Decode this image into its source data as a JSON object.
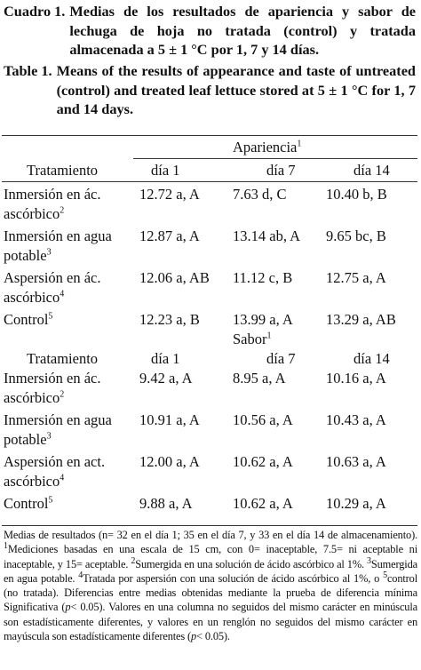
{
  "caption_es": {
    "label": "Cuadro 1.",
    "text": "Medias de los resultados de apariencia y sabor de lechuga de hoja no tratada (control) y tratada almacenada a 5 ± 1 °C por 1, 7 y 14 días."
  },
  "caption_en": {
    "label": "Table 1.",
    "text": "Means of the results of appearance and taste of untreated (control) and treated leaf lettuce stored at 5 ± 1 °C for 1, 7 and 14 days."
  },
  "sections": [
    {
      "title": {
        "text": "Apariencia",
        "sup": "1"
      },
      "header": [
        "Tratamiento",
        "día 1",
        "día 7",
        "día 14"
      ],
      "rows": [
        {
          "treatment": [
            "Inmersión en ác.",
            "ascórbico"
          ],
          "sup": "2",
          "values": [
            "12.72 a, A",
            "7.63 d, C",
            "10.40 b, B"
          ]
        },
        {
          "treatment": [
            "Inmersión en agua",
            "potable"
          ],
          "sup": "3",
          "values": [
            "12.87 a, A",
            "13.14 ab,  A",
            "9.65 bc, B"
          ]
        },
        {
          "treatment": [
            "Aspersión en ác.",
            "ascórbico"
          ],
          "sup": "4",
          "values": [
            "12.06 a, AB",
            "11.12 c, B",
            "12.75 a, A"
          ]
        },
        {
          "treatment": [
            "Control"
          ],
          "sup": "5",
          "values": [
            "12.23 a, B",
            "13.99 a, A",
            "13.29 a, AB"
          ]
        }
      ]
    },
    {
      "title": {
        "text": "Sabor",
        "sup": "1"
      },
      "header": [
        "Tratamiento",
        "día 1",
        "día 7",
        "día 14"
      ],
      "rows": [
        {
          "treatment": [
            "Inmersión en ác.",
            "ascórbico"
          ],
          "sup": "2",
          "values": [
            "9.42 a, A",
            "8.95 a, A",
            "10.16 a, A"
          ]
        },
        {
          "treatment": [
            "Inmersión en agua",
            "potable"
          ],
          "sup": "3",
          "values": [
            "10.91 a, A",
            "10.56 a, A",
            "10.43 a, A"
          ]
        },
        {
          "treatment": [
            "Aspersión en act.",
            "ascórbico"
          ],
          "sup": "4",
          "values": [
            "12.00 a, A",
            "10.62 a, A",
            "10.63 a, A"
          ]
        },
        {
          "treatment": [
            "Control"
          ],
          "sup": "5",
          "values": [
            "9.88 a, A",
            "10.62 a, A",
            "10.29 a, A"
          ]
        }
      ]
    }
  ],
  "footnote": [
    {
      "text": "Medias de resultados (n= 32 en el día 1; 35 en el día 7, y 33 en el día 14 de almacenamiento). "
    },
    {
      "sup": "1"
    },
    {
      "text": "Mediciones basadas en una escala de 15 cm, con 0= inaceptable, 7.5= ni aceptable ni inaceptable, y 15= aceptable. "
    },
    {
      "sup": "2"
    },
    {
      "text": "Sumergida en una solución de ácido ascórbico al 1%. "
    },
    {
      "sup": "3"
    },
    {
      "text": "Sumergida en agua potable. "
    },
    {
      "sup": "4"
    },
    {
      "text": "Tratada por aspersión con una solución de ácido ascórbico al 1%, o "
    },
    {
      "sup": "5"
    },
    {
      "text": "control (no tratada). Diferencias entre medias obtenidas mediante la prueba de diferencia mínima Significativa ("
    },
    {
      "italic": "p"
    },
    {
      "text": "< 0.05). Valores en una columna no seguidos del mismo carácter en minúscula son estadísticamente diferentes, y valores en un renglón no seguidos del mismo carácter en mayúscula son estadísticamente diferentes ("
    },
    {
      "italic": "p"
    },
    {
      "text": "< 0.05)."
    }
  ]
}
